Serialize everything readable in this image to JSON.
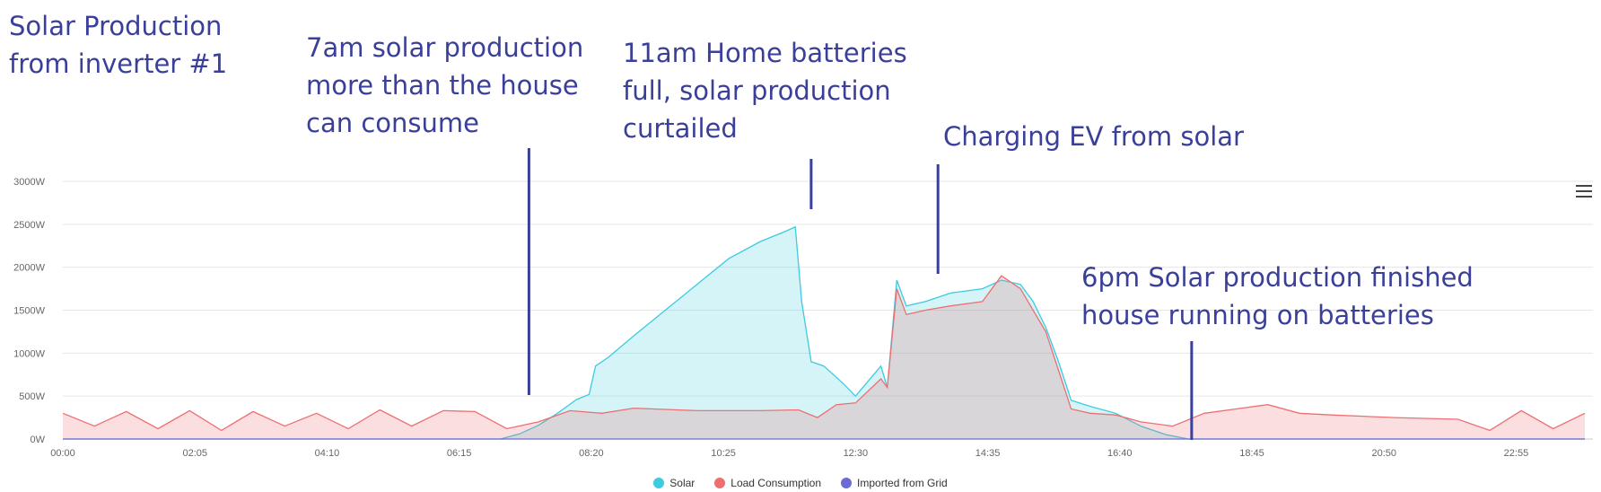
{
  "annotations": [
    {
      "id": "title",
      "text": "Solar Production\nfrom inverter #1"
    },
    {
      "id": "a7am",
      "text": "7am solar production\nmore than the house\ncan consume"
    },
    {
      "id": "a11am",
      "text": "11am Home batteries\nfull, solar production\ncurtailed"
    },
    {
      "id": "aev",
      "text": "Charging EV from solar"
    },
    {
      "id": "a6pm",
      "text": "6pm Solar production finished\nhouse running on batteries"
    }
  ],
  "chart_data": {
    "type": "area",
    "x_labels": [
      "00:00",
      "02:05",
      "04:10",
      "06:15",
      "08:20",
      "10:25",
      "12:30",
      "14:35",
      "16:40",
      "18:45",
      "20:50",
      "22:55"
    ],
    "y_labels": [
      "0W",
      "500W",
      "1000W",
      "1500W",
      "2000W",
      "2500W",
      "3000W"
    ],
    "ylim": [
      0,
      3000
    ],
    "xlim_hours": [
      0,
      24
    ],
    "series": [
      {
        "name": "Solar",
        "color": "#3ccbdf",
        "points": [
          [
            0,
            0
          ],
          [
            6.9,
            0
          ],
          [
            7.2,
            60
          ],
          [
            7.5,
            160
          ],
          [
            7.8,
            300
          ],
          [
            8.1,
            460
          ],
          [
            8.3,
            520
          ],
          [
            8.4,
            850
          ],
          [
            8.6,
            950
          ],
          [
            9.0,
            1200
          ],
          [
            9.5,
            1500
          ],
          [
            10.0,
            1800
          ],
          [
            10.5,
            2100
          ],
          [
            11.0,
            2300
          ],
          [
            11.4,
            2420
          ],
          [
            11.55,
            2470
          ],
          [
            11.65,
            1600
          ],
          [
            11.8,
            900
          ],
          [
            12.0,
            850
          ],
          [
            12.3,
            650
          ],
          [
            12.5,
            500
          ],
          [
            12.9,
            850
          ],
          [
            13.0,
            600
          ],
          [
            13.15,
            1850
          ],
          [
            13.3,
            1550
          ],
          [
            13.6,
            1600
          ],
          [
            14.0,
            1700
          ],
          [
            14.5,
            1750
          ],
          [
            14.8,
            1850
          ],
          [
            15.1,
            1800
          ],
          [
            15.3,
            1600
          ],
          [
            15.5,
            1300
          ],
          [
            15.7,
            900
          ],
          [
            15.9,
            450
          ],
          [
            16.2,
            380
          ],
          [
            16.6,
            300
          ],
          [
            17.0,
            150
          ],
          [
            17.4,
            50
          ],
          [
            17.75,
            0
          ],
          [
            24,
            0
          ]
        ]
      },
      {
        "name": "Load Consumption",
        "color": "#ee6f72",
        "points": [
          [
            0,
            300
          ],
          [
            0.5,
            150
          ],
          [
            1.0,
            320
          ],
          [
            1.5,
            120
          ],
          [
            2.0,
            330
          ],
          [
            2.5,
            100
          ],
          [
            3.0,
            320
          ],
          [
            3.5,
            150
          ],
          [
            4.0,
            300
          ],
          [
            4.5,
            120
          ],
          [
            5.0,
            340
          ],
          [
            5.5,
            150
          ],
          [
            6.0,
            330
          ],
          [
            6.5,
            320
          ],
          [
            7.0,
            120
          ],
          [
            7.5,
            200
          ],
          [
            8.0,
            330
          ],
          [
            8.5,
            300
          ],
          [
            9.0,
            360
          ],
          [
            10.0,
            330
          ],
          [
            11.0,
            330
          ],
          [
            11.6,
            340
          ],
          [
            11.9,
            250
          ],
          [
            12.2,
            400
          ],
          [
            12.5,
            420
          ],
          [
            12.9,
            700
          ],
          [
            13.0,
            600
          ],
          [
            13.15,
            1750
          ],
          [
            13.3,
            1450
          ],
          [
            13.6,
            1500
          ],
          [
            14.0,
            1550
          ],
          [
            14.5,
            1600
          ],
          [
            14.8,
            1900
          ],
          [
            15.1,
            1750
          ],
          [
            15.3,
            1500
          ],
          [
            15.5,
            1250
          ],
          [
            15.7,
            800
          ],
          [
            15.9,
            350
          ],
          [
            16.2,
            300
          ],
          [
            16.6,
            280
          ],
          [
            17.0,
            200
          ],
          [
            17.5,
            150
          ],
          [
            18.0,
            300
          ],
          [
            18.5,
            350
          ],
          [
            19.0,
            400
          ],
          [
            19.5,
            300
          ],
          [
            20.0,
            280
          ],
          [
            21.0,
            250
          ],
          [
            22.0,
            230
          ],
          [
            22.5,
            100
          ],
          [
            23.0,
            330
          ],
          [
            23.5,
            120
          ],
          [
            24,
            300
          ]
        ]
      },
      {
        "name": "Imported from Grid",
        "color": "#6b6bd1",
        "points": [
          [
            0,
            0
          ],
          [
            24,
            0
          ]
        ]
      }
    ]
  }
}
